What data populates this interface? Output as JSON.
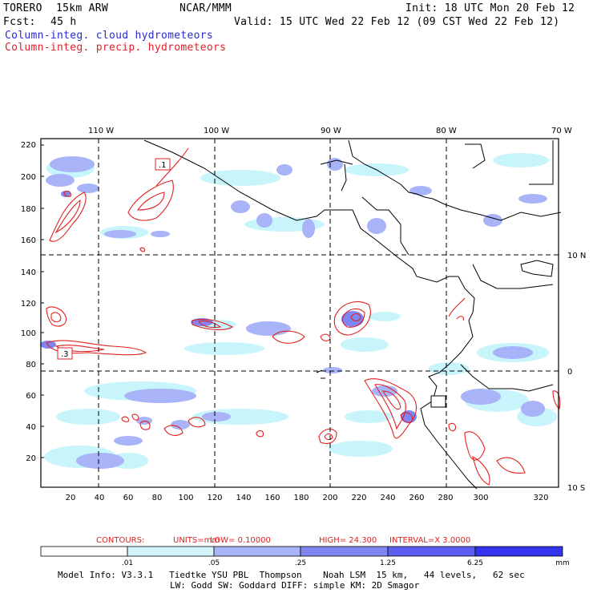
{
  "header": {
    "model": "TORERO",
    "resolution": "15km ARW",
    "org": "NCAR/MMM",
    "init": "Init: 18 UTC Mon 20 Feb 12",
    "fcst_label": "Fcst:",
    "fcst_value": "45 h",
    "valid": "Valid: 15 UTC Wed 22 Feb 12 (09 CST Wed 22 Feb 12)",
    "legend_cloud": "Column-integ. cloud hydrometeors",
    "legend_precip": "Column-integ. precip. hydrometeors"
  },
  "map": {
    "lon_labels": [
      "110 W",
      "100 W",
      "90 W",
      "80 W",
      "70 W"
    ],
    "lat_labels": [
      "10 N",
      "0",
      "10 S"
    ],
    "y_ticks": [
      "220",
      "200",
      "180",
      "160",
      "140",
      "120",
      "100",
      "80",
      "60",
      "40",
      "20"
    ],
    "x_ticks": [
      "20",
      "40",
      "60",
      "80",
      "100",
      "120",
      "140",
      "160",
      "180",
      "200",
      "220",
      "240",
      "260",
      "280",
      "300",
      "320"
    ],
    "contour_labels": [
      ".1",
      ".3"
    ],
    "colors": {
      "cloud_light": "#c8f4fb",
      "cloud_mid": "#a9b3f7",
      "cloud_dark": "#7f86f2",
      "precip": "#e02020",
      "coast": "#000000"
    }
  },
  "contours_info": {
    "label": "CONTOURS:",
    "units": "UNITS=mm",
    "low": "LOW= 0.10000",
    "high": "HIGH= 24.300",
    "interval": "INTERVAL=X 3.0000"
  },
  "colorbar": {
    "ticks": [
      ".01",
      ".05",
      ".25",
      "1.25",
      "6.25"
    ],
    "unit": "mm",
    "colors": [
      "#ffffff",
      "#d2f6fb",
      "#a9b3f7",
      "#7f86f2",
      "#5c5cf0",
      "#3434ee"
    ]
  },
  "footer": {
    "line1": "Model Info: V3.3.1   Tiedtke YSU PBL  Thompson    Noah LSM  15 km,   44 levels,   62 sec",
    "line2": "LW: Godd SW: Goddard DIFF: simple KM: 2D Smagor"
  }
}
